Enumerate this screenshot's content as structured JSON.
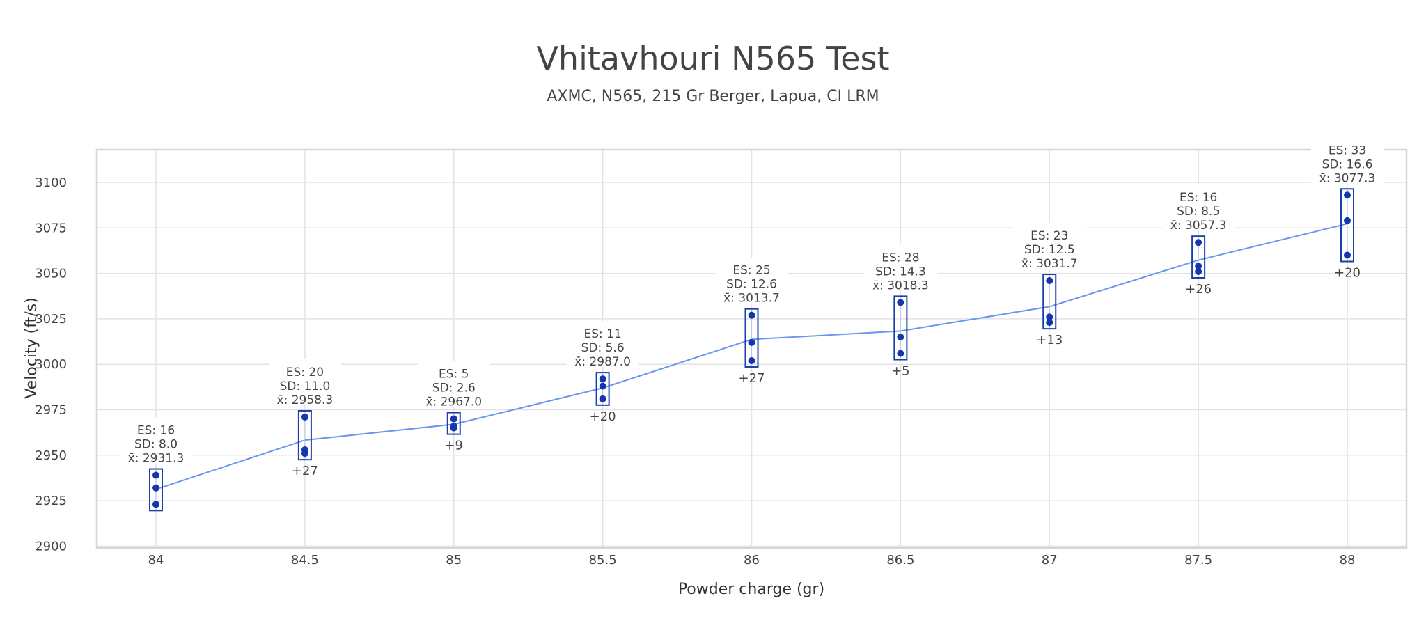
{
  "chart_data": {
    "type": "scatter",
    "title": "Vhitavhouri N565 Test",
    "subtitle": "AXMC, N565, 215 Gr Berger, Lapua, CI LRM",
    "xlabel": "Powder charge (gr)",
    "ylabel": "Velocity (ft/s)",
    "xlim": [
      83.8,
      88.2
    ],
    "ylim": [
      2899,
      3118
    ],
    "yticks": [
      2900,
      2925,
      2950,
      2975,
      3000,
      3025,
      3050,
      3075,
      3100
    ],
    "xticks": [
      "84",
      "84.5",
      "85",
      "85.5",
      "86",
      "86.5",
      "87",
      "87.5",
      "88"
    ],
    "grid": true,
    "stat_labels": {
      "es": "ES: ",
      "sd": "SD: ",
      "mean": "x̄: "
    },
    "series": [
      {
        "charge": 84,
        "shots": [
          2923,
          2932,
          2939
        ],
        "es": "16",
        "sd": "8.0",
        "mean": "2931.3",
        "delta": ""
      },
      {
        "charge": 84.5,
        "shots": [
          2951,
          2953,
          2971
        ],
        "es": "20",
        "sd": "11.0",
        "mean": "2958.3",
        "delta": "+27"
      },
      {
        "charge": 85,
        "shots": [
          2965,
          2966,
          2970
        ],
        "es": "5",
        "sd": "2.6",
        "mean": "2967.0",
        "delta": "+9"
      },
      {
        "charge": 85.5,
        "shots": [
          2981,
          2988,
          2992
        ],
        "es": "11",
        "sd": "5.6",
        "mean": "2987.0",
        "delta": "+20"
      },
      {
        "charge": 86,
        "shots": [
          3002,
          3012,
          3027
        ],
        "es": "25",
        "sd": "12.6",
        "mean": "3013.7",
        "delta": "+27"
      },
      {
        "charge": 86.5,
        "shots": [
          3006,
          3015,
          3034
        ],
        "es": "28",
        "sd": "14.3",
        "mean": "3018.3",
        "delta": "+5"
      },
      {
        "charge": 87,
        "shots": [
          3023,
          3026,
          3046
        ],
        "es": "23",
        "sd": "12.5",
        "mean": "3031.7",
        "delta": "+13"
      },
      {
        "charge": 87.5,
        "shots": [
          3051,
          3054,
          3067
        ],
        "es": "16",
        "sd": "8.5",
        "mean": "3057.3",
        "delta": "+26"
      },
      {
        "charge": 88,
        "shots": [
          3060,
          3079,
          3093
        ],
        "es": "33",
        "sd": "16.6",
        "mean": "3077.3",
        "delta": "+20"
      }
    ]
  }
}
